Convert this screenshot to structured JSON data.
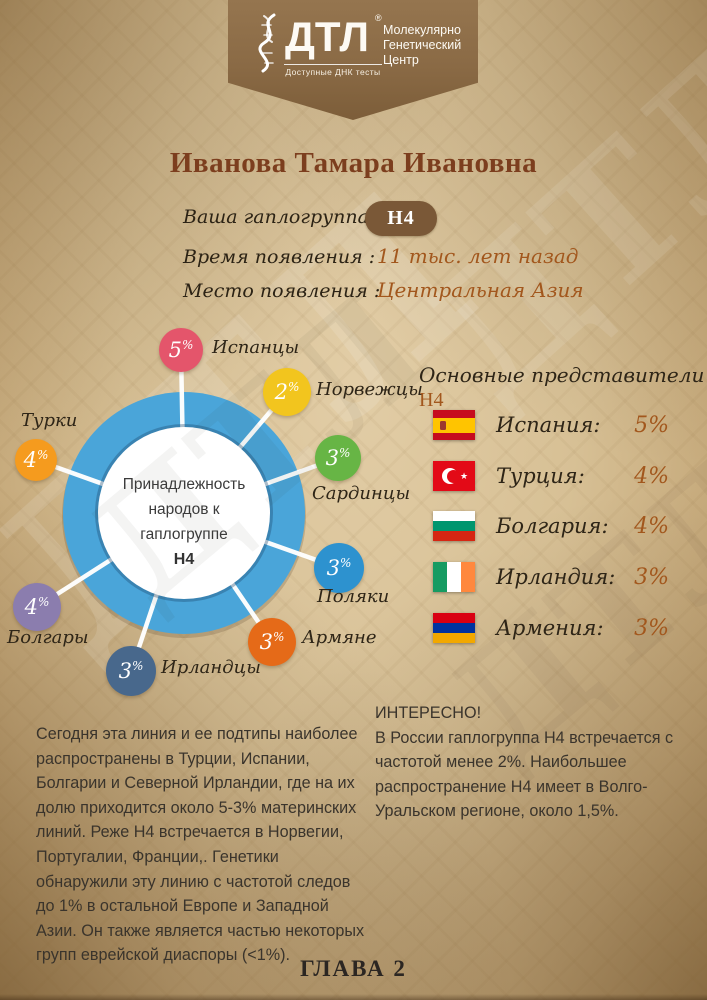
{
  "header": {
    "brand": "ДТЛ",
    "reg": "®",
    "org_lines": [
      "Молекулярно",
      "Генетический",
      "Центр"
    ],
    "tagline": "Доступные ДНК тесты"
  },
  "person": {
    "name": "Иванова Тамара Ивановна"
  },
  "fields": [
    {
      "label": "Ваша гаплогруппа:",
      "value": "H4"
    },
    {
      "label": "Время появления :",
      "value": "11 тыс. лет назад"
    },
    {
      "label": "Место появления :",
      "value": "Центральная Азия"
    }
  ],
  "chart_data": {
    "type": "pie",
    "title": "Принадлежность народов к гаплогруппе H4",
    "center": [
      "Принадлежность",
      "народов к",
      "гаплогруппе"
    ],
    "center_h4": "H4",
    "unit": "%",
    "categories": [
      "Испанцы",
      "Норвежцы",
      "Сардинцы",
      "Поляки",
      "Армяне",
      "Ирландцы",
      "Болгары",
      "Турки"
    ],
    "values": [
      5,
      2,
      3,
      3,
      3,
      3,
      4,
      4
    ],
    "ring_color": "#4aa5d9",
    "bubbles": [
      {
        "label": "Испанцы",
        "value": "5",
        "unit": "%",
        "color": "#e4556b"
      },
      {
        "label": "Норвежцы",
        "value": "2",
        "unit": "%",
        "color": "#f2c51e"
      },
      {
        "label": "Сардинцы",
        "value": "3",
        "unit": "%",
        "color": "#67b545"
      },
      {
        "label": "Поляки",
        "value": "3",
        "unit": "%",
        "color": "#2d92cf"
      },
      {
        "label": "Армяне",
        "value": "3",
        "unit": "%",
        "color": "#e56a18"
      },
      {
        "label": "Ирландцы",
        "value": "3",
        "unit": "%",
        "color": "#48688c"
      },
      {
        "label": "Болгары",
        "value": "4",
        "unit": "%",
        "color": "#8b7dae"
      },
      {
        "label": "Турки",
        "value": "4",
        "unit": "%",
        "color": "#f59b1e"
      }
    ]
  },
  "representatives": {
    "title": "Основные представители",
    "title_h4": "H4",
    "rows": [
      {
        "country": "Испания:",
        "pct": "5%",
        "flag": {
          "layout": "h",
          "stripes": [
            {
              "color": "#C60B1E",
              "size": 25
            },
            {
              "color": "#FFC400",
              "size": 50
            },
            {
              "color": "#C60B1E",
              "size": 25
            }
          ],
          "emblem": "spain"
        }
      },
      {
        "country": "Турция:",
        "pct": "4%",
        "flag": {
          "layout": "h",
          "stripes": [
            {
              "color": "#E30A17",
              "size": 100
            }
          ],
          "emblem": "turkey"
        }
      },
      {
        "country": "Болгария:",
        "pct": "4%",
        "flag": {
          "layout": "h",
          "stripes": [
            {
              "color": "#FFFFFF",
              "size": 33
            },
            {
              "color": "#00966E",
              "size": 34
            },
            {
              "color": "#D62612",
              "size": 33
            }
          ],
          "emblem": null
        }
      },
      {
        "country": "Ирландия:",
        "pct": "3%",
        "flag": {
          "layout": "v",
          "stripes": [
            {
              "color": "#169B62",
              "size": 33
            },
            {
              "color": "#FFFFFF",
              "size": 34
            },
            {
              "color": "#FF883E",
              "size": 33
            }
          ],
          "emblem": null
        }
      },
      {
        "country": "Армения:",
        "pct": "3%",
        "flag": {
          "layout": "h",
          "stripes": [
            {
              "color": "#D90012",
              "size": 33
            },
            {
              "color": "#0033A0",
              "size": 34
            },
            {
              "color": "#F2A800",
              "size": 33
            }
          ],
          "emblem": null
        }
      }
    ]
  },
  "paragraph_left": "Сегодня эта линия и ее подтипы наиболее распространены в Турции, Испании, Болгарии и Северной Ирландии, где на их долю приходится около 5-3% материнских линий. Реже H4 встречается в Норвегии, Португалии, Франции,. Генетики обнаружили эту линию с частотой следов до 1% в остальной Европе и Западной Азии. Он также является частью некоторых групп еврейской диаспоры (<1%).",
  "interesting": {
    "title": "ИНТЕРЕСНО!",
    "body": "В России гаплогруппа H4 встречается с частотой менее 2%. Наибольшее распространение H4 имеет в Волго-Уральском регионе, около 1,5%."
  },
  "footer": {
    "chapter": "ГЛАВА 2"
  },
  "watermark": "ДТЛ",
  "colors": {
    "accent": "#a2571d",
    "title": "#7c3e1e",
    "banner": "#8a6a45",
    "pill": "#7a5837",
    "ring": "#4aa5d9"
  }
}
